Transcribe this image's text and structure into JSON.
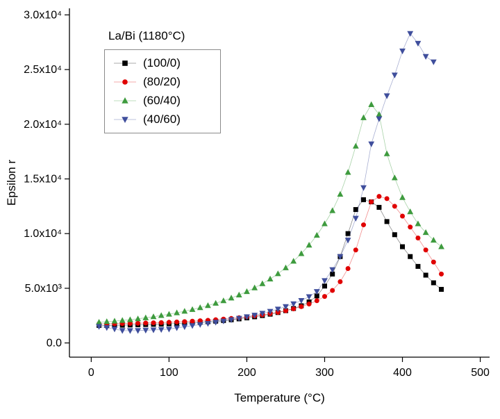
{
  "chart_data": {
    "type": "scatter",
    "title": "",
    "xlabel": "Temperature (°C)",
    "ylabel": "Epsilon r",
    "xlim": [
      -28,
      512
    ],
    "ylim": [
      -1300,
      30600
    ],
    "grid": false,
    "axes": "left-bottom-only",
    "x_ticks": [
      0,
      100,
      200,
      300,
      400,
      500
    ],
    "x_tick_labels": [
      "0",
      "100",
      "200",
      "300",
      "400",
      "500"
    ],
    "y_ticks": [
      0,
      5000,
      10000,
      15000,
      20000,
      25000,
      30000
    ],
    "y_tick_labels": [
      "0.0",
      "5.0x10³",
      "1.0x10⁴",
      "1.5x10⁴",
      "2.0x10⁴",
      "2.5x10⁴",
      "3.0x10⁴"
    ],
    "legend": {
      "title": "La/Bi (1180°C)",
      "position": "upper-left"
    },
    "x": [
      10,
      20,
      30,
      40,
      50,
      60,
      70,
      80,
      90,
      100,
      110,
      120,
      130,
      140,
      150,
      160,
      170,
      180,
      190,
      200,
      210,
      220,
      230,
      240,
      250,
      260,
      270,
      280,
      290,
      300,
      310,
      320,
      330,
      340,
      350,
      360,
      370,
      380,
      390,
      400,
      410,
      420,
      430,
      440,
      450
    ],
    "series": [
      {
        "name": "(100/0)",
        "marker": "square",
        "color": "#000000",
        "values": [
          1600,
          1600,
          1610,
          1620,
          1640,
          1660,
          1680,
          1700,
          1720,
          1750,
          1780,
          1810,
          1850,
          1890,
          1940,
          1990,
          2050,
          2120,
          2200,
          2290,
          2390,
          2500,
          2630,
          2780,
          2950,
          3150,
          3400,
          3750,
          4300,
          5200,
          6300,
          7900,
          10000,
          12200,
          13100,
          12900,
          12400,
          11100,
          9900,
          8800,
          7900,
          7000,
          6200,
          5500,
          4900
        ]
      },
      {
        "name": "(80/20)",
        "marker": "circle",
        "color": "#e00000",
        "values": [
          1750,
          1750,
          1760,
          1770,
          1780,
          1800,
          1820,
          1840,
          1860,
          1890,
          1920,
          1950,
          1990,
          2030,
          2070,
          2120,
          2180,
          2240,
          2310,
          2390,
          2470,
          2570,
          2680,
          2800,
          2950,
          3120,
          3320,
          3560,
          3860,
          4250,
          4800,
          5600,
          6800,
          8500,
          10800,
          12900,
          13400,
          13200,
          12500,
          11600,
          10600,
          9600,
          8500,
          7400,
          6300
        ]
      },
      {
        "name": "(60/40)",
        "marker": "triangle-up",
        "color": "#3e9b3e",
        "values": [
          1900,
          1950,
          2000,
          2060,
          2130,
          2210,
          2300,
          2400,
          2510,
          2630,
          2760,
          2900,
          3060,
          3230,
          3420,
          3630,
          3860,
          4110,
          4390,
          4700,
          5040,
          5420,
          5850,
          6330,
          6870,
          7480,
          8170,
          8950,
          9850,
          10900,
          12100,
          13600,
          15600,
          18000,
          20600,
          21800,
          20900,
          17300,
          15100,
          13300,
          12000,
          10900,
          10100,
          9400,
          8800
        ]
      },
      {
        "name": "(40/60)",
        "marker": "triangle-down",
        "color": "#3f4e9c",
        "values": [
          1500,
          1400,
          1270,
          1130,
          1120,
          1130,
          1160,
          1190,
          1220,
          1260,
          1380,
          1480,
          1580,
          1680,
          1780,
          1890,
          2000,
          2120,
          2250,
          2390,
          2540,
          2710,
          2890,
          3090,
          3320,
          3580,
          3880,
          4230,
          4700,
          5700,
          6700,
          7900,
          9400,
          11400,
          14200,
          18200,
          20500,
          22600,
          24500,
          26700,
          28300,
          27400,
          26200,
          25700,
          null
        ]
      }
    ]
  }
}
